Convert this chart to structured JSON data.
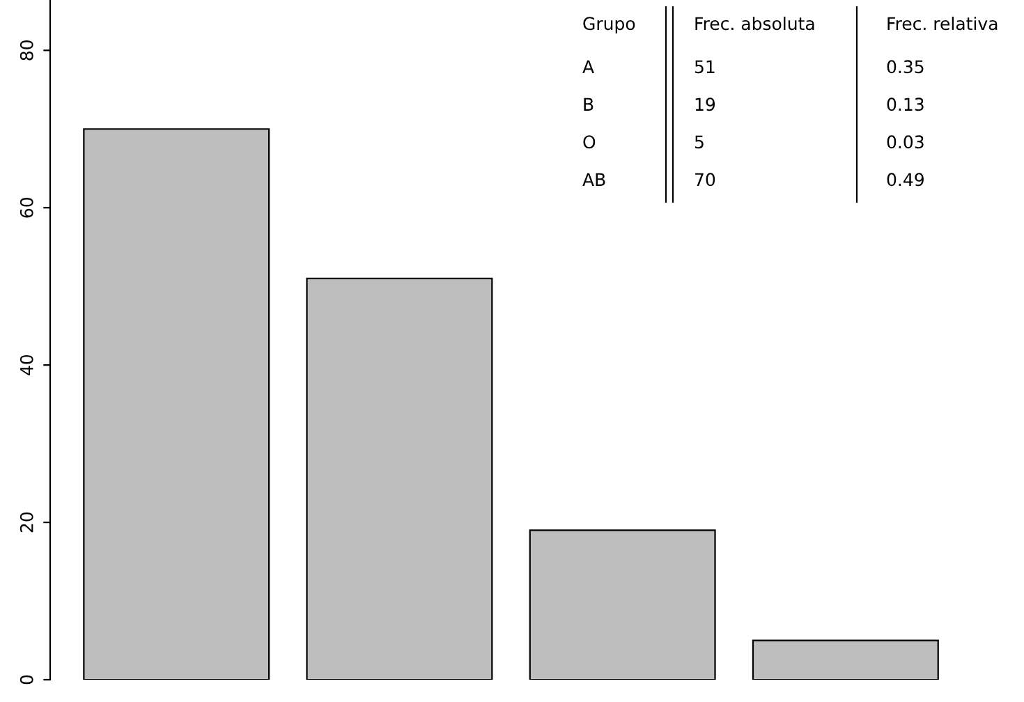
{
  "chart_data": {
    "type": "bar",
    "categories": [
      null,
      null,
      null,
      null
    ],
    "values": [
      70,
      51,
      19,
      5
    ],
    "color": "#bebebe",
    "ylim": [
      0,
      86.4
    ],
    "yticks": [
      0,
      20,
      40,
      60,
      80
    ],
    "grid": false,
    "annotations": [
      "Grupo",
      "Frec. absoluta",
      "Frec. relativa",
      "A",
      "51",
      "0.35",
      "B",
      "19",
      "0.13",
      "O",
      "5",
      "0.03",
      "AB",
      "70",
      "0.49"
    ]
  }
}
